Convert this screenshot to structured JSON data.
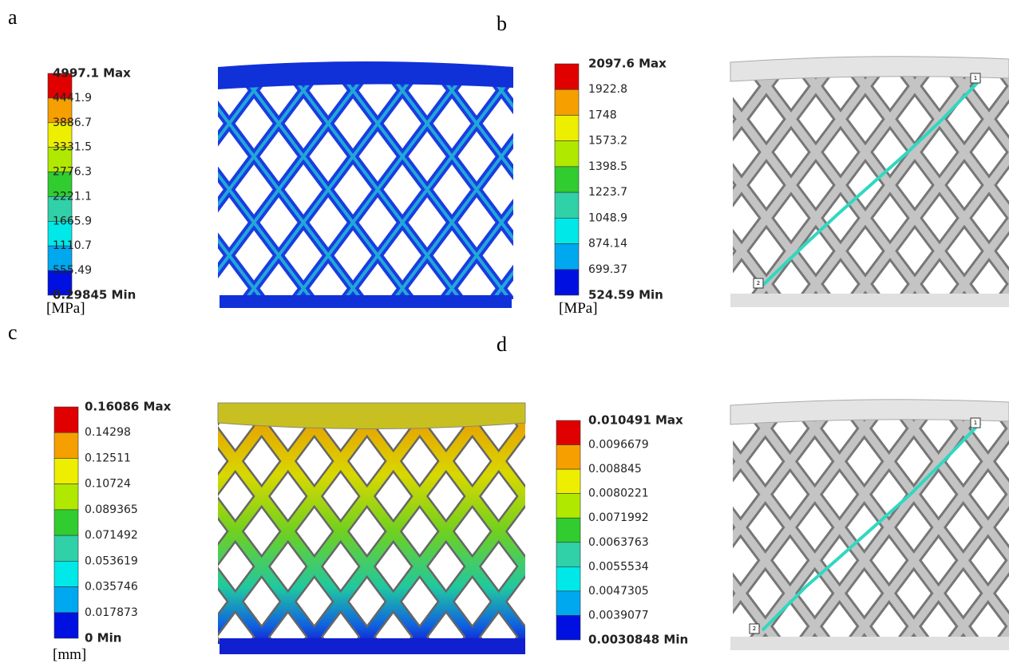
{
  "panels": [
    {
      "label": "a",
      "legend": [
        "4997.1 Max",
        "4441.9",
        "3886.7",
        "3331.5",
        "2776.3",
        "2221.1",
        "1665.9",
        "1110.7",
        "555.49",
        "0.29845 Min"
      ],
      "unit": "[MPa]"
    },
    {
      "label": "b",
      "legend": [
        "2097.6 Max",
        "1922.8",
        "1748",
        "1573.2",
        "1398.5",
        "1223.7",
        "1048.9",
        "874.14",
        "699.37",
        "524.59 Min"
      ],
      "unit": "[MPa]",
      "path_markers": [
        "1",
        "2"
      ]
    },
    {
      "label": "c",
      "legend": [
        "0.16086 Max",
        "0.14298",
        "0.12511",
        "0.10724",
        "0.089365",
        "0.071492",
        "0.053619",
        "0.035746",
        "0.017873",
        "0 Min"
      ],
      "unit": "[mm]"
    },
    {
      "label": "d",
      "legend": [
        "0.010491 Max",
        "0.0096679",
        "0.008845",
        "0.0080221",
        "0.0071992",
        "0.0063763",
        "0.0055534",
        "0.0047305",
        "0.0039077",
        "0.0030848 Min"
      ],
      "path_markers": [
        "1",
        "2"
      ]
    }
  ]
}
